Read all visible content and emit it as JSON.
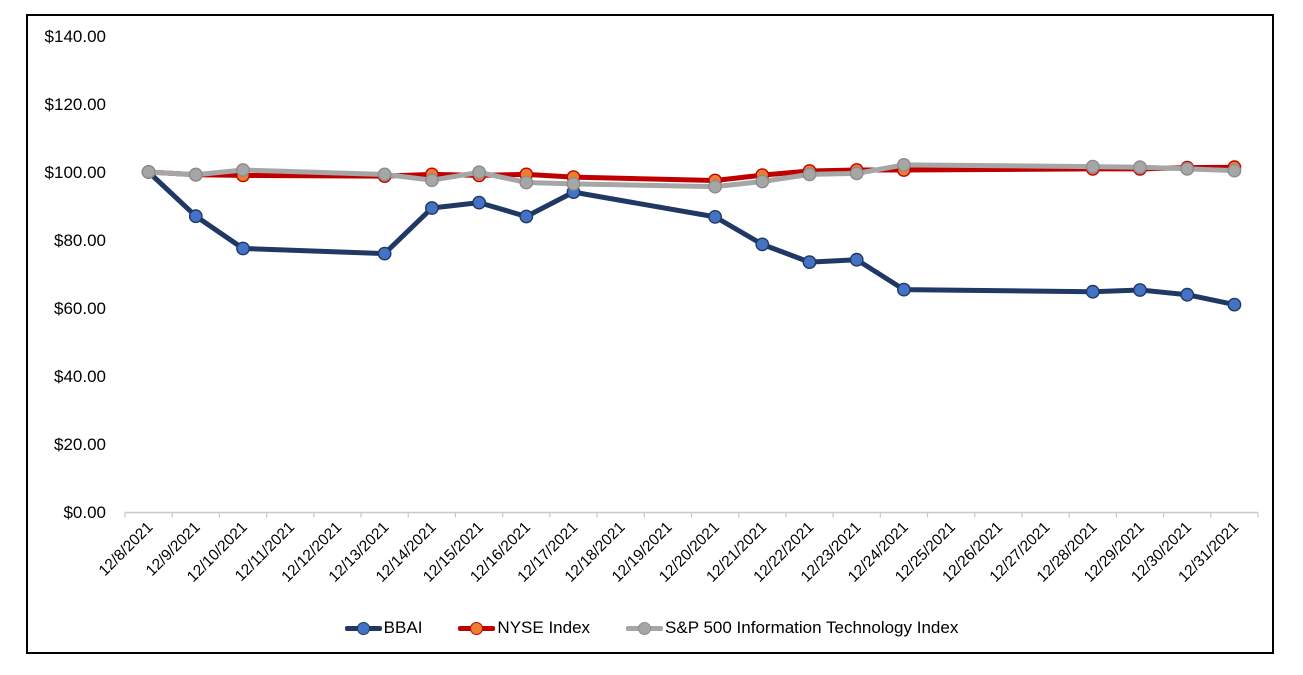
{
  "chart_data": {
    "type": "line",
    "title": "",
    "xlabel": "",
    "ylabel": "",
    "grid": false,
    "legend_position": "bottom",
    "background_color": "#ffffff",
    "border_color": "#000000",
    "axis_line_color": "#c8c8c8",
    "y_axis": {
      "min": 0,
      "max": 140,
      "step": 20,
      "tick_labels": [
        "$140.00",
        "$120.00",
        "$100.00",
        "$80.00",
        "$60.00",
        "$40.00",
        "$20.00",
        "$0.00"
      ],
      "tick_values": [
        140,
        120,
        100,
        80,
        60,
        40,
        20,
        0
      ]
    },
    "x_axis": {
      "categories": [
        "12/8/2021",
        "12/9/2021",
        "12/10/2021",
        "12/11/2021",
        "12/12/2021",
        "12/13/2021",
        "12/14/2021",
        "12/15/2021",
        "12/16/2021",
        "12/17/2021",
        "12/18/2021",
        "12/19/2021",
        "12/20/2021",
        "12/21/2021",
        "12/22/2021",
        "12/23/2021",
        "12/24/2021",
        "12/25/2021",
        "12/26/2021",
        "12/27/2021",
        "12/28/2021",
        "12/29/2021",
        "12/30/2021",
        "12/31/2021"
      ],
      "label_rotation_deg": 45
    },
    "data_dates": [
      "12/8/2021",
      "12/9/2021",
      "12/10/2021",
      "12/13/2021",
      "12/14/2021",
      "12/15/2021",
      "12/16/2021",
      "12/17/2021",
      "12/20/2021",
      "12/21/2021",
      "12/22/2021",
      "12/23/2021",
      "12/24/2021",
      "12/28/2021",
      "12/29/2021",
      "12/30/2021",
      "12/31/2021"
    ],
    "series": [
      {
        "name": "BBAI",
        "line_color": "#1f3864",
        "marker_fill": "#4472c4",
        "marker_border": "#1f3864",
        "values": [
          100.0,
          87.0,
          77.5,
          76.0,
          89.4,
          91.0,
          86.9,
          94.1,
          86.8,
          78.7,
          73.5,
          74.2,
          65.4,
          64.8,
          65.3,
          63.9,
          61.0
        ]
      },
      {
        "name": "NYSE Index",
        "line_color": "#c00000",
        "marker_fill": "#ed7d31",
        "marker_border": "#c00000",
        "values": [
          100.0,
          99.2,
          99.0,
          98.8,
          99.3,
          99.0,
          99.3,
          98.5,
          97.5,
          99.1,
          100.3,
          100.6,
          100.6,
          100.9,
          100.9,
          101.3,
          101.4
        ]
      },
      {
        "name": "S&P 500 Information Technology Index",
        "line_color": "#a6a6a6",
        "marker_fill": "#a6a6a6",
        "marker_border": "#8c8c8c",
        "values": [
          100.0,
          99.2,
          100.6,
          99.3,
          97.6,
          99.9,
          96.9,
          96.5,
          95.7,
          97.2,
          99.3,
          99.6,
          102.1,
          101.6,
          101.4,
          100.9,
          100.4
        ]
      }
    ]
  }
}
